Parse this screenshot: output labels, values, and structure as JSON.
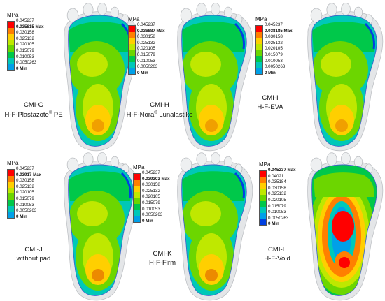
{
  "unit": "MPa",
  "colors": {
    "max": "#ff0000",
    "bands": [
      "#ff0000",
      "#ff7f00",
      "#ffcf00",
      "#bfe800",
      "#6cd600",
      "#00c84a",
      "#00c8b8",
      "#00a0e8",
      "#0040e0"
    ]
  },
  "panels": [
    {
      "id": "G",
      "code": "CMI-G",
      "material": "H-F-Plastazote",
      "material_sup": "®",
      "material_tail": " PE",
      "legend": {
        "top": "0.045237",
        "max_label": "0.035815 Max",
        "ticks": [
          "0.030158",
          "0.025132",
          "0.020105",
          "0.015079",
          "0.010053",
          "0.0050263"
        ],
        "min_label": "0 Min"
      },
      "pattern": "standard",
      "heel_color": "#f0a000"
    },
    {
      "id": "H",
      "code": "CMI-H",
      "material": "H-F-Nora",
      "material_sup": "®",
      "material_tail": " Lunalastike",
      "legend": {
        "top": "0.045237",
        "max_label": "0.036887 Max",
        "ticks": [
          "0.030158",
          "0.025132",
          "0.020105",
          "0.015079",
          "0.010053",
          "0.0050263"
        ],
        "min_label": "0 Min"
      },
      "pattern": "standard",
      "heel_color": "#f0a000"
    },
    {
      "id": "I",
      "code": "CMI-I",
      "material": "H-F-EVA",
      "material_sup": "",
      "material_tail": "",
      "legend": {
        "top": "0.045237",
        "max_label": "0.038185 Max",
        "ticks": [
          "0.030158",
          "0.025132",
          "0.020105",
          "0.015079",
          "0.010053",
          "0.0050263"
        ],
        "min_label": "0 Min"
      },
      "pattern": "standard",
      "heel_color": "#f0a000"
    },
    {
      "id": "J",
      "code": "CMI-J",
      "material": "without pad",
      "material_sup": "",
      "material_tail": "",
      "legend": {
        "top": "0.045237",
        "max_label": "0.03917 Max",
        "ticks": [
          "0.030158",
          "0.025132",
          "0.020105",
          "0.015079",
          "0.010053",
          "0.0050263"
        ],
        "min_label": "0 Min"
      },
      "pattern": "standard",
      "heel_color": "#ec8a00"
    },
    {
      "id": "K",
      "code": "CMI-K",
      "material": "H-F-Firm",
      "material_sup": "",
      "material_tail": "",
      "legend": {
        "top": "0.045237",
        "max_label": "0.039303 Max",
        "ticks": [
          "0.030158",
          "0.025132",
          "0.020105",
          "0.015079",
          "0.010053",
          "0.0050263"
        ],
        "min_label": "0 Min"
      },
      "pattern": "standard",
      "heel_color": "#ec8a00"
    },
    {
      "id": "L",
      "code": "CMI-L",
      "material": "H-F-Void",
      "material_sup": "",
      "material_tail": "",
      "legend": {
        "top": "0.045237 Max",
        "max_label": "",
        "ticks": [
          "0.04021",
          "0.035184",
          "0.030158",
          "0.025132",
          "0.020105",
          "0.015079",
          "0.010053",
          "0.0050263"
        ],
        "min_label": "0 Min"
      },
      "pattern": "void",
      "heel_color": "#00c8b8"
    }
  ]
}
